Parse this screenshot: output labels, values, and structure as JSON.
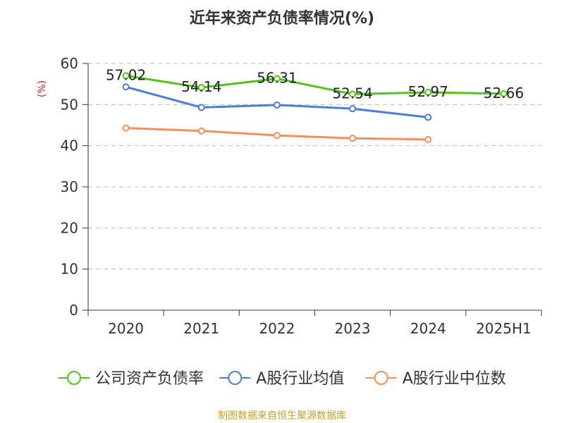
{
  "chart_data": {
    "type": "line",
    "title": "近年来资产负债率情况(%)",
    "ylabel": "(%)",
    "categories": [
      "2020",
      "2021",
      "2022",
      "2023",
      "2024",
      "2025H1"
    ],
    "ylim": [
      0,
      60
    ],
    "yticks": [
      0,
      10,
      20,
      30,
      40,
      50,
      60
    ],
    "grid": true,
    "legend_position": "bottom",
    "series": [
      {
        "name": "公司资产负债率",
        "color": "#52c41a",
        "values": [
          57.02,
          54.14,
          56.31,
          52.54,
          52.97,
          52.66
        ],
        "labels": [
          "57.02",
          "54.14",
          "56.31",
          "52.54",
          "52.97",
          "52.66"
        ]
      },
      {
        "name": "A股行业均值",
        "color": "#4a7fd8",
        "values": [
          54.3,
          49.3,
          49.9,
          49.0,
          46.9,
          null
        ]
      },
      {
        "name": "A股行业中位数",
        "color": "#f4905a",
        "values": [
          44.3,
          43.6,
          42.5,
          41.8,
          41.5,
          null
        ]
      }
    ]
  },
  "footer": {
    "source": "制图数据来自恒生聚源数据库"
  }
}
